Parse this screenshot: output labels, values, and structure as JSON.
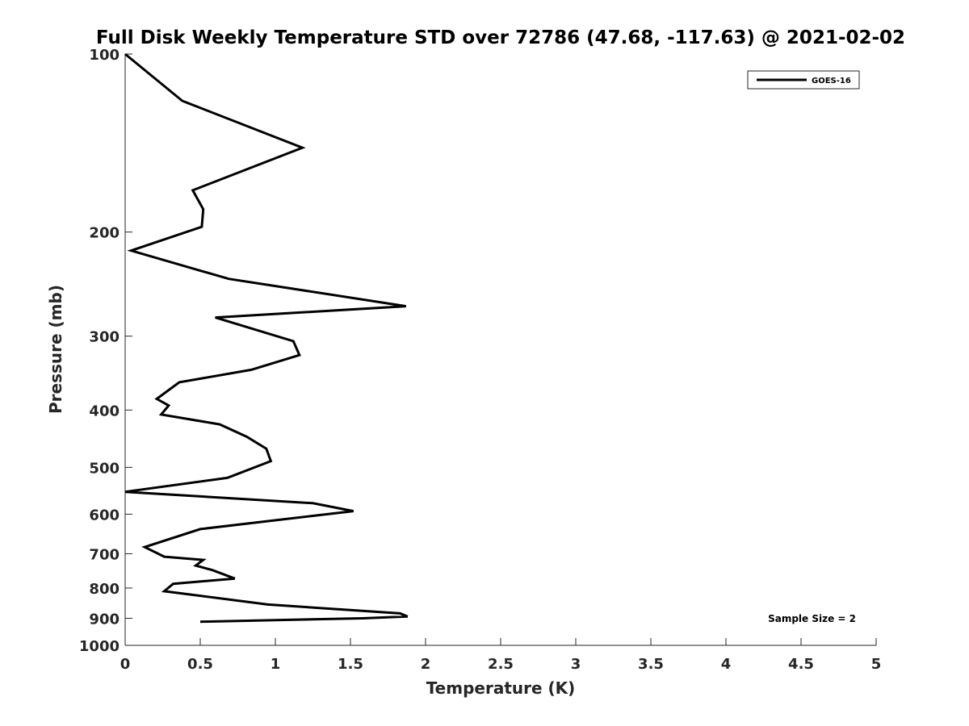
{
  "chart_data": {
    "type": "line",
    "title": "Full Disk Weekly Temperature STD over 72786 (47.68, -117.63) @ 2021-02-02",
    "xlabel": "Temperature (K)",
    "ylabel": "Pressure (mb)",
    "xlim": [
      0,
      5
    ],
    "ylim": [
      100,
      1000
    ],
    "y_scale": "log",
    "y_reversed": true,
    "grid": false,
    "legend_position": "top-right",
    "x_ticks": [
      "0",
      "0.5",
      "1",
      "1.5",
      "2",
      "2.5",
      "3",
      "3.5",
      "4",
      "4.5",
      "5"
    ],
    "y_ticks": [
      "100",
      "200",
      "300",
      "400",
      "500",
      "600",
      "700",
      "800",
      "900",
      "1000"
    ],
    "series": [
      {
        "name": "GOES-16",
        "color": "#000000",
        "x": [
          0.0,
          0.38,
          1.18,
          0.45,
          0.52,
          0.51,
          0.04,
          0.69,
          1.87,
          0.6,
          1.12,
          1.16,
          0.84,
          0.36,
          0.21,
          0.29,
          0.24,
          0.63,
          0.81,
          0.94,
          0.97,
          0.68,
          0.0,
          1.25,
          1.52,
          0.5,
          0.13,
          0.26,
          0.52,
          0.47,
          0.58,
          0.73,
          0.32,
          0.26,
          0.95,
          1.83,
          1.88,
          1.58,
          0.5
        ],
        "y": [
          100,
          120,
          144,
          170,
          183,
          196,
          215,
          240,
          267,
          279,
          306,
          323,
          342,
          359,
          383,
          393,
          407,
          423,
          444,
          465,
          488,
          521,
          550,
          575,
          593,
          636,
          682,
          708,
          717,
          733,
          746,
          771,
          787,
          810,
          853,
          883,
          894,
          900,
          912
        ]
      }
    ],
    "annotations": [
      "Sample Size = 2"
    ]
  }
}
